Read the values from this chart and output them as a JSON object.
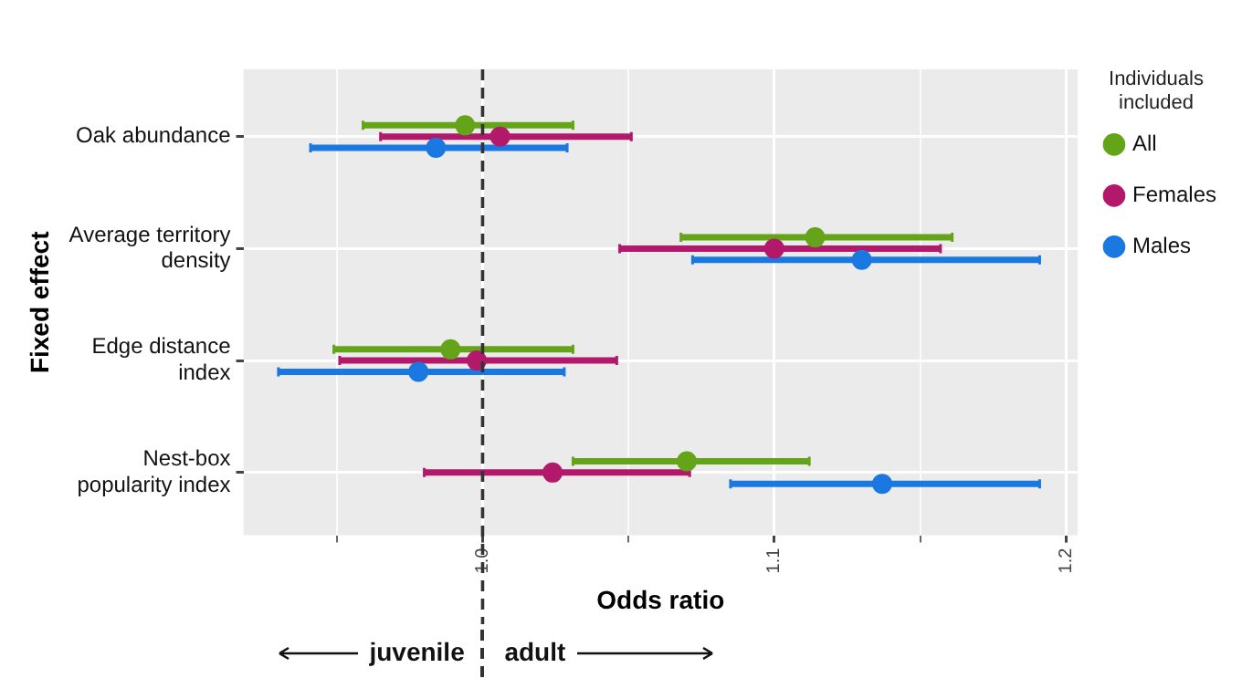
{
  "chart_data": {
    "type": "scatter",
    "xlabel": "Odds ratio",
    "ylabel": "Fixed effect",
    "legend_title": "Individuals included",
    "categories": [
      "Oak abundance",
      "Average territory density",
      "Edge distance index",
      "Nest-box popularity index"
    ],
    "series": [
      {
        "name": "All",
        "color": "#64a419",
        "values": [
          0.994,
          1.114,
          0.989,
          1.07
        ],
        "errors": [
          [
            0.959,
            1.031
          ],
          [
            1.068,
            1.161
          ],
          [
            0.949,
            1.031
          ],
          [
            1.031,
            1.112
          ]
        ]
      },
      {
        "name": "Females",
        "color": "#b3196b",
        "values": [
          1.006,
          1.1,
          0.998,
          1.024
        ],
        "errors": [
          [
            0.965,
            1.051
          ],
          [
            1.047,
            1.157
          ],
          [
            0.951,
            1.046
          ],
          [
            0.98,
            1.071
          ]
        ]
      },
      {
        "name": "Males",
        "color": "#1a78e0",
        "values": [
          0.984,
          1.13,
          0.978,
          1.137
        ],
        "errors": [
          [
            0.941,
            1.029
          ],
          [
            1.072,
            1.191
          ],
          [
            0.93,
            1.028
          ],
          [
            1.085,
            1.191
          ]
        ]
      }
    ],
    "orientation": "horizontal",
    "xlim": [
      0.918,
      1.204
    ],
    "xticks": [
      {
        "value": 0.95,
        "label": null
      },
      {
        "value": 1.0,
        "label": "1.0"
      },
      {
        "value": 1.05,
        "label": null
      },
      {
        "value": 1.1,
        "label": "1.1"
      },
      {
        "value": 1.15,
        "label": null
      },
      {
        "value": 1.2,
        "label": "1.2"
      }
    ],
    "ref_lines": [
      {
        "axis": "x",
        "value": 1.0,
        "line_style": "dashed",
        "color": "#333333"
      }
    ],
    "annotations": [
      "juvenile",
      "adult"
    ],
    "grid": true,
    "legend": "top right",
    "marker": "circle"
  }
}
